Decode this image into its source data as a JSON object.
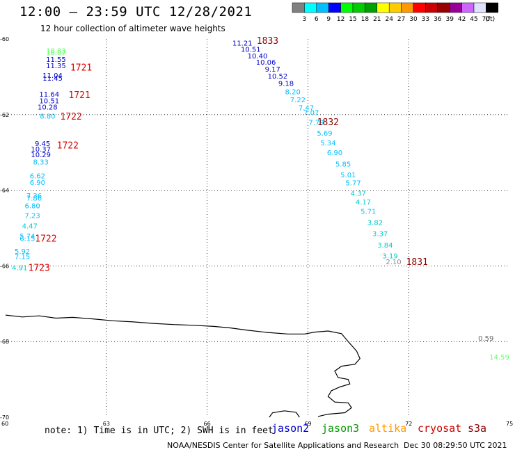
{
  "header": {
    "title": "12:00 – 23:59 UTC 12/28/2021",
    "subtitle": "12 hour collection of altimeter wave heights"
  },
  "colorbar": {
    "colors": [
      "#808080",
      "#00ffff",
      "#00bfff",
      "#0000ff",
      "#00ff00",
      "#00cc00",
      "#00a000",
      "#ffff00",
      "#ffcc00",
      "#ff9900",
      "#ff0000",
      "#cc0000",
      "#990000",
      "#990099",
      "#cc66ff",
      "#e0e0ff",
      "#000000"
    ],
    "labels": [
      "3",
      "6",
      "9",
      "12",
      "15",
      "18",
      "21",
      "24",
      "27",
      "30",
      "33",
      "36",
      "39",
      "42",
      "45",
      "70",
      "(ft)"
    ]
  },
  "map": {
    "lon_range": [
      60,
      75
    ],
    "lat_range": [
      -70,
      -60
    ],
    "lon_ticks": [
      "60",
      "63",
      "66",
      "69",
      "72",
      "75"
    ],
    "lat_ticks": [
      "-60",
      "-62",
      "-64",
      "-66",
      "-68",
      "-70"
    ]
  },
  "wave_labels": [
    {
      "v": "18.83",
      "lon": 61.5,
      "lat": -60.3,
      "c": "#66ff66"
    },
    {
      "v": "18.07",
      "lon": 61.5,
      "lat": -60.36,
      "c": "#66ff66"
    },
    {
      "v": "11.55",
      "lon": 61.5,
      "lat": -60.53,
      "c": "#0000cc"
    },
    {
      "v": "11.35",
      "lon": 61.5,
      "lat": -60.7,
      "c": "#0000cc"
    },
    {
      "v": "11.04",
      "lon": 61.4,
      "lat": -60.96,
      "c": "#0000cc"
    },
    {
      "v": "11.45",
      "lon": 61.4,
      "lat": -61.03,
      "c": "#0000cc"
    },
    {
      "v": "11.64",
      "lon": 61.3,
      "lat": -61.45,
      "c": "#0000cc"
    },
    {
      "v": "10.51",
      "lon": 61.3,
      "lat": -61.63,
      "c": "#0000cc"
    },
    {
      "v": "10.28",
      "lon": 61.25,
      "lat": -61.79,
      "c": "#0000cc"
    },
    {
      "v": "8.80",
      "lon": 61.25,
      "lat": -62.03,
      "c": "#00bfff"
    },
    {
      "v": "9.45",
      "lon": 61.1,
      "lat": -62.76,
      "c": "#0000cc"
    },
    {
      "v": "10.37",
      "lon": 61.05,
      "lat": -62.9,
      "c": "#0000cc"
    },
    {
      "v": "10.29",
      "lon": 61.05,
      "lat": -63.05,
      "c": "#0000cc"
    },
    {
      "v": "8.33",
      "lon": 61.05,
      "lat": -63.24,
      "c": "#00bfff"
    },
    {
      "v": "6.62",
      "lon": 60.95,
      "lat": -63.61,
      "c": "#00bfff"
    },
    {
      "v": "6.90",
      "lon": 60.95,
      "lat": -63.79,
      "c": "#00bfff"
    },
    {
      "v": "7.36",
      "lon": 60.85,
      "lat": -64.14,
      "c": "#00bfff"
    },
    {
      "v": "7.86",
      "lon": 60.85,
      "lat": -64.2,
      "c": "#00bfff"
    },
    {
      "v": "6.80",
      "lon": 60.8,
      "lat": -64.4,
      "c": "#00bfff"
    },
    {
      "v": "7.23",
      "lon": 60.8,
      "lat": -64.66,
      "c": "#00bfff"
    },
    {
      "v": "4.47",
      "lon": 60.72,
      "lat": -64.94,
      "c": "#00cccc"
    },
    {
      "v": "5.74",
      "lon": 60.65,
      "lat": -65.2,
      "c": "#00bfff"
    },
    {
      "v": "6.15",
      "lon": 60.65,
      "lat": -65.27,
      "c": "#00bfff"
    },
    {
      "v": "5.92",
      "lon": 60.5,
      "lat": -65.61,
      "c": "#00bfff"
    },
    {
      "v": "7.15",
      "lon": 60.5,
      "lat": -65.74,
      "c": "#00bfff"
    },
    {
      "v": "4.91",
      "lon": 60.42,
      "lat": -66.04,
      "c": "#00cccc"
    },
    {
      "v": "11.21",
      "lon": 67.05,
      "lat": -60.1,
      "c": "#0000cc"
    },
    {
      "v": "10.51",
      "lon": 67.3,
      "lat": -60.27,
      "c": "#0000cc"
    },
    {
      "v": "10.40",
      "lon": 67.5,
      "lat": -60.44,
      "c": "#0000cc"
    },
    {
      "v": "10.06",
      "lon": 67.75,
      "lat": -60.61,
      "c": "#0000cc"
    },
    {
      "v": "9.17",
      "lon": 67.95,
      "lat": -60.79,
      "c": "#0000cc"
    },
    {
      "v": "10.52",
      "lon": 68.1,
      "lat": -60.97,
      "c": "#0000cc"
    },
    {
      "v": "9.18",
      "lon": 68.35,
      "lat": -61.17,
      "c": "#0000cc"
    },
    {
      "v": "8.20",
      "lon": 68.55,
      "lat": -61.39,
      "c": "#00bfff"
    },
    {
      "v": "7.22",
      "lon": 68.7,
      "lat": -61.6,
      "c": "#00bfff"
    },
    {
      "v": "7.47",
      "lon": 68.95,
      "lat": -61.81,
      "c": "#00bfff"
    },
    {
      "v": "7.07",
      "lon": 69.1,
      "lat": -61.94,
      "c": "#00bfff"
    },
    {
      "v": "7.79",
      "lon": 69.25,
      "lat": -62.2,
      "c": "#00bfff"
    },
    {
      "v": "5.69",
      "lon": 69.5,
      "lat": -62.48,
      "c": "#00bfff"
    },
    {
      "v": "5.34",
      "lon": 69.6,
      "lat": -62.74,
      "c": "#00bfff"
    },
    {
      "v": "6.90",
      "lon": 69.8,
      "lat": -63.0,
      "c": "#00bfff"
    },
    {
      "v": "5.85",
      "lon": 70.05,
      "lat": -63.3,
      "c": "#00bfff"
    },
    {
      "v": "5.01",
      "lon": 70.2,
      "lat": -63.58,
      "c": "#00bfff"
    },
    {
      "v": "5.77",
      "lon": 70.35,
      "lat": -63.8,
      "c": "#00bfff"
    },
    {
      "v": "4.37",
      "lon": 70.5,
      "lat": -64.07,
      "c": "#00cccc"
    },
    {
      "v": "4.17",
      "lon": 70.65,
      "lat": -64.3,
      "c": "#00cccc"
    },
    {
      "v": "5.71",
      "lon": 70.8,
      "lat": -64.55,
      "c": "#00bfff"
    },
    {
      "v": "3.82",
      "lon": 71.0,
      "lat": -64.84,
      "c": "#00cccc"
    },
    {
      "v": "3.37",
      "lon": 71.15,
      "lat": -65.14,
      "c": "#00cccc"
    },
    {
      "v": "3.84",
      "lon": 71.3,
      "lat": -65.44,
      "c": "#00cccc"
    },
    {
      "v": "3.19",
      "lon": 71.45,
      "lat": -65.73,
      "c": "#00cccc"
    },
    {
      "v": "2.10",
      "lon": 71.55,
      "lat": -65.88,
      "c": "#888888"
    },
    {
      "v": "0.59",
      "lon": 74.3,
      "lat": -67.9,
      "c": "#666666"
    },
    {
      "v": "14.59",
      "lon": 74.7,
      "lat": -68.4,
      "c": "#66ff66"
    }
  ],
  "time_labels": [
    {
      "v": "1833",
      "lon": 67.8,
      "lat": -60.04,
      "c": "#880000"
    },
    {
      "v": "1721",
      "lon": 62.25,
      "lat": -60.74,
      "c": "#dd0000"
    },
    {
      "v": "1721",
      "lon": 62.2,
      "lat": -61.47,
      "c": "#dd0000"
    },
    {
      "v": "1722",
      "lon": 61.95,
      "lat": -62.04,
      "c": "#dd0000"
    },
    {
      "v": "1722",
      "lon": 61.85,
      "lat": -62.8,
      "c": "#dd0000"
    },
    {
      "v": "1832",
      "lon": 69.6,
      "lat": -62.19,
      "c": "#880000"
    },
    {
      "v": "1722",
      "lon": 61.2,
      "lat": -65.27,
      "c": "#dd0000"
    },
    {
      "v": "1723",
      "lon": 61.0,
      "lat": -66.04,
      "c": "#dd0000"
    },
    {
      "v": "1831",
      "lon": 72.25,
      "lat": -65.88,
      "c": "#880000"
    }
  ],
  "coastline": [
    [
      60.0,
      -67.3
    ],
    [
      60.5,
      -67.35
    ],
    [
      61.0,
      -67.32
    ],
    [
      61.5,
      -67.38
    ],
    [
      62.0,
      -67.36
    ],
    [
      62.6,
      -67.4
    ],
    [
      63.2,
      -67.45
    ],
    [
      63.8,
      -67.48
    ],
    [
      64.4,
      -67.52
    ],
    [
      65.0,
      -67.55
    ],
    [
      65.6,
      -67.57
    ],
    [
      66.2,
      -67.6
    ],
    [
      66.7,
      -67.64
    ],
    [
      67.2,
      -67.7
    ],
    [
      67.8,
      -67.76
    ],
    [
      68.4,
      -67.8
    ],
    [
      68.9,
      -67.8
    ],
    [
      69.2,
      -67.75
    ],
    [
      69.6,
      -67.72
    ],
    [
      70.0,
      -67.79
    ],
    [
      70.2,
      -68.0
    ],
    [
      70.45,
      -68.25
    ],
    [
      70.55,
      -68.45
    ],
    [
      70.4,
      -68.6
    ],
    [
      70.0,
      -68.65
    ],
    [
      69.8,
      -68.78
    ],
    [
      69.9,
      -68.95
    ],
    [
      70.2,
      -69.0
    ],
    [
      70.25,
      -69.12
    ],
    [
      69.95,
      -69.2
    ],
    [
      69.7,
      -69.3
    ],
    [
      69.6,
      -69.45
    ],
    [
      69.8,
      -69.6
    ],
    [
      70.2,
      -69.62
    ],
    [
      70.3,
      -69.75
    ],
    [
      70.1,
      -69.88
    ],
    [
      69.6,
      -69.92
    ],
    [
      69.3,
      -69.98
    ]
  ],
  "coastline_2": [
    [
      67.85,
      -70.0
    ],
    [
      67.95,
      -69.88
    ],
    [
      68.3,
      -69.83
    ],
    [
      68.65,
      -69.87
    ],
    [
      68.75,
      -70.0
    ]
  ],
  "legend": {
    "note": "note: 1) Time is in UTC; 2) SWH is in feet",
    "satellites": [
      {
        "name": "jason2",
        "color": "#0000cc"
      },
      {
        "name": "jason3",
        "color": "#009900"
      },
      {
        "name": "altika",
        "color": "#ff9900"
      },
      {
        "name": "cryosat",
        "color": "#cc0000"
      },
      {
        "name": "s3a",
        "color": "#880000"
      }
    ],
    "credit": "NOAA/NESDIS Center for Satellite Applications and Research",
    "timestamp": "Dec 30 08:29:50 UTC 2021"
  }
}
